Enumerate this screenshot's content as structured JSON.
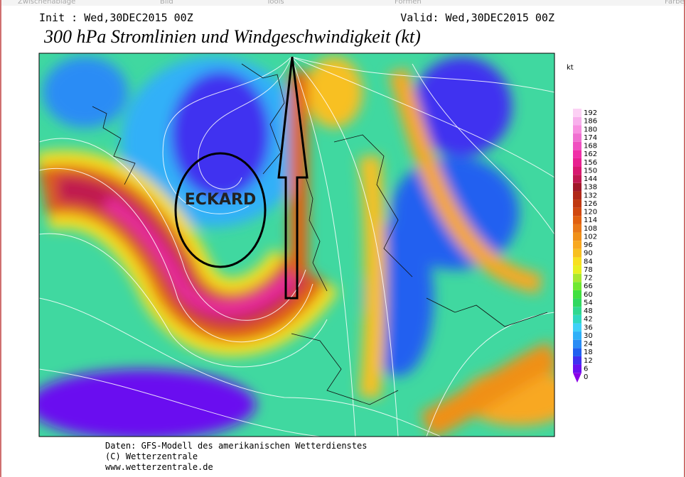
{
  "menu": [
    "Zwischenablage",
    "Bild",
    "Tools",
    "Formen",
    "Farbe"
  ],
  "header": {
    "init": "Init : Wed,30DEC2015 00Z",
    "valid": "Valid: Wed,30DEC2015 00Z",
    "title": "300 hPa Stromlinien und Windgeschwindigkeit (kt)"
  },
  "annotation": "ECKARD",
  "legend": {
    "unit": "kt",
    "levels": [
      0,
      6,
      12,
      18,
      24,
      30,
      36,
      42,
      48,
      54,
      60,
      66,
      72,
      78,
      84,
      90,
      96,
      102,
      108,
      114,
      120,
      126,
      132,
      138,
      144,
      150,
      156,
      162,
      168,
      174,
      180,
      186,
      192
    ],
    "colors": [
      "#8a00e6",
      "#6a10f0",
      "#4030f0",
      "#2060f0",
      "#2a8cf5",
      "#30b0f8",
      "#40d0f8",
      "#30d8c0",
      "#30d890",
      "#30d860",
      "#40e040",
      "#70e830",
      "#a8e830",
      "#e8f020",
      "#f8e020",
      "#f8c020",
      "#f8a820",
      "#f09018",
      "#e87818",
      "#e06010",
      "#d04810",
      "#c03810",
      "#b02818",
      "#a01828",
      "#c01850",
      "#d81870",
      "#e82090",
      "#f030a8",
      "#f050c0",
      "#f070d0",
      "#f890e0",
      "#f8b0ec",
      "#fcd0f4"
    ]
  },
  "footer": [
    "Daten: GFS-Modell des amerikanischen Wetterdienstes",
    "(C) Wetterzentrale",
    "www.wetterzentrale.de"
  ]
}
